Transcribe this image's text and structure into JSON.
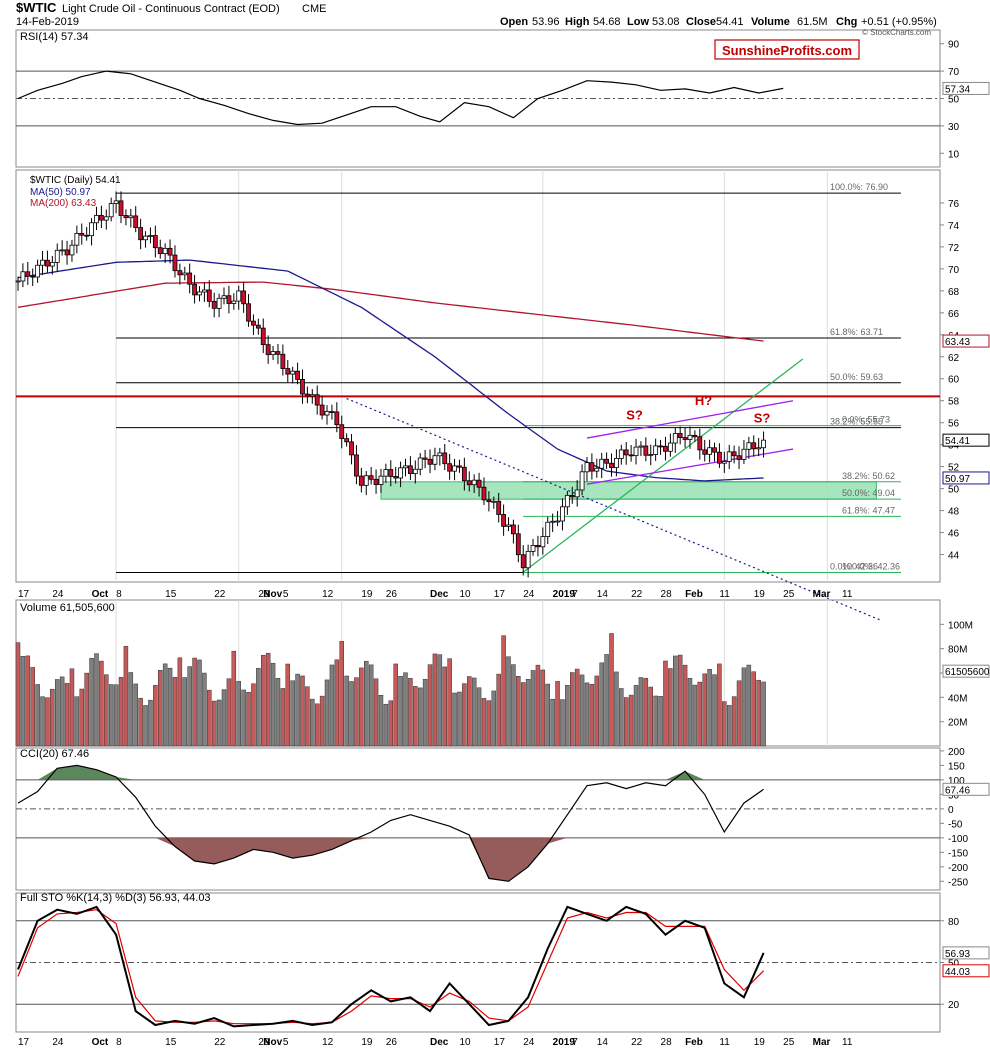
{
  "header": {
    "symbol": "$WTIC",
    "name": "Light Crude Oil - Continuous Contract (EOD)",
    "exchange": "CME",
    "date": "14-Feb-2019",
    "open_label": "Open",
    "open": "53.96",
    "high_label": "High",
    "high": "54.68",
    "low_label": "Low",
    "low": "53.08",
    "close_label": "Close",
    "close": "54.41",
    "volume_label": "Volume",
    "volume": "61.5M",
    "chg_label": "Chg",
    "chg": "+0.51 (+0.95%)",
    "copyright": "© StockCharts.com",
    "watermark": "SunshineProfits.com"
  },
  "colors": {
    "up": "#ffffff",
    "down": "#c8102e",
    "ma50": "#1a1a8c",
    "ma200": "#b0162e",
    "resistance": "#c00000",
    "channel": "#a020f0",
    "support": "#2ab55a",
    "zone_fill": "#9de3b6",
    "neg_fill": "#8b4a4a",
    "pos_fill": "#4a7a4a",
    "vol_up": "#7f7f7f",
    "vol_down": "#c45a5a",
    "pctd": "#e00000"
  },
  "x_axis": {
    "labels": [
      "17",
      "24",
      "Oct",
      "8",
      "15",
      "22",
      "29",
      "Nov",
      "5",
      "12",
      "19",
      "26",
      "Dec",
      "10",
      "17",
      "24",
      "2019",
      "7",
      "14",
      "22",
      "28",
      "Feb",
      "11",
      "19",
      "25",
      "Mar",
      "11"
    ]
  },
  "chart_data": [
    {
      "type": "line",
      "title": "RSI(14) 57.34",
      "ylim": [
        0,
        100
      ],
      "y_ticks": [
        "90",
        "70",
        "50",
        "30",
        "10"
      ],
      "last_label": "57.34",
      "reference_lines": [
        70,
        50,
        30
      ],
      "x_sessions": [
        0,
        4,
        9,
        13,
        18,
        23,
        28,
        33,
        37,
        42,
        47,
        52,
        57,
        62,
        67,
        72,
        77,
        82,
        86,
        91,
        96,
        101,
        106,
        111,
        116,
        121,
        126,
        131,
        136,
        141,
        146,
        151,
        156
      ],
      "values": [
        50,
        56,
        61,
        66,
        70,
        68,
        62,
        56,
        50,
        45,
        39,
        34,
        31,
        32,
        38,
        44,
        44,
        37,
        33,
        47,
        44,
        36,
        50,
        56,
        63,
        62,
        60,
        56,
        57,
        54,
        58,
        54,
        57.34
      ]
    },
    {
      "type": "candlestick",
      "title": "$WTIC (Daily) 54.41",
      "ylim": [
        41.5,
        79
      ],
      "y_ticks": [
        "76",
        "74",
        "72",
        "70",
        "68",
        "66",
        "64",
        "62",
        "60",
        "58",
        "56",
        "54",
        "52",
        "50",
        "48",
        "46",
        "44"
      ],
      "last_labels": {
        "close": "54.41",
        "ma200": "63.43",
        "ma50": "50.97"
      },
      "legend": [
        "$WTIC (Daily) 54.41",
        "MA(50) 50.97",
        "MA(200) 63.43"
      ],
      "anchors": [
        [
          0,
          68.9
        ],
        [
          10,
          71.8
        ],
        [
          15,
          74.0
        ],
        [
          20,
          75.9
        ],
        [
          25,
          73.2
        ],
        [
          30,
          71.5
        ],
        [
          35,
          68.5
        ],
        [
          40,
          66.9
        ],
        [
          45,
          67.5
        ],
        [
          50,
          63.2
        ],
        [
          55,
          60.8
        ],
        [
          60,
          58.0
        ],
        [
          65,
          56.1
        ],
        [
          70,
          50.5
        ],
        [
          75,
          51.2
        ],
        [
          80,
          51.8
        ],
        [
          85,
          53.0
        ],
        [
          90,
          51.5
        ],
        [
          95,
          49.5
        ],
        [
          100,
          46.5
        ],
        [
          103,
          43.2
        ],
        [
          106,
          45.2
        ],
        [
          110,
          47.6
        ],
        [
          113,
          49.5
        ],
        [
          116,
          52.0
        ],
        [
          120,
          52.2
        ],
        [
          125,
          53.5
        ],
        [
          130,
          53.4
        ],
        [
          133,
          54.2
        ],
        [
          136,
          55.0
        ],
        [
          140,
          53.5
        ],
        [
          144,
          52.6
        ],
        [
          147,
          53.2
        ],
        [
          150,
          53.9
        ],
        [
          152,
          54.41
        ]
      ],
      "ma50": [
        [
          0,
          69.2
        ],
        [
          20,
          70.6
        ],
        [
          35,
          70.8
        ],
        [
          55,
          69.8
        ],
        [
          70,
          66.5
        ],
        [
          85,
          62.0
        ],
        [
          100,
          56.8
        ],
        [
          110,
          53.6
        ],
        [
          120,
          51.6
        ],
        [
          130,
          51.0
        ],
        [
          140,
          50.7
        ],
        [
          152,
          50.97
        ]
      ],
      "ma200": [
        [
          0,
          66.5
        ],
        [
          30,
          68.7
        ],
        [
          50,
          68.8
        ],
        [
          65,
          68.1
        ],
        [
          85,
          66.9
        ],
        [
          105,
          65.9
        ],
        [
          125,
          64.9
        ],
        [
          145,
          63.8
        ],
        [
          152,
          63.43
        ]
      ],
      "horizontal_levels": [
        {
          "label": "100.0%: 76.90",
          "value": 76.9
        },
        {
          "label": "61.8%: 63.71",
          "value": 63.71
        },
        {
          "label": "50.0%: 59.63",
          "value": 59.63
        },
        {
          "label": "38.2%: 55.55",
          "value": 55.55
        },
        {
          "label": "0.0%: 42.36",
          "value": 42.36
        }
      ],
      "resistance_level": 58.4,
      "green_levels": [
        {
          "label": "0.0%: 55.73",
          "value": 55.73
        },
        {
          "label": "38.2%: 50.62",
          "value": 50.62
        },
        {
          "label": "50.0%: 49.04",
          "value": 49.04
        },
        {
          "label": "61.8%: 47.47",
          "value": 47.47
        },
        {
          "label": "100.0%: 42.36",
          "value": 42.36
        }
      ],
      "support_zone": [
        49.04,
        50.62
      ],
      "downtrend_line": [
        [
          67,
          58.2
        ],
        [
          176,
          38.0
        ]
      ],
      "uptrend_line": [
        [
          103,
          42.4
        ],
        [
          160,
          61.8
        ]
      ],
      "channel_upper": [
        [
          116,
          54.6
        ],
        [
          158,
          58.0
        ]
      ],
      "channel_lower": [
        [
          116,
          50.4
        ],
        [
          158,
          53.6
        ]
      ],
      "annotations": [
        {
          "text": "S?",
          "session": 124,
          "value": 56.3
        },
        {
          "text": "H?",
          "session": 138,
          "value": 57.6
        },
        {
          "text": "S?",
          "session": 150,
          "value": 56.0
        }
      ]
    },
    {
      "type": "bar",
      "title": "Volume 61,505,600",
      "ylim": [
        0,
        120
      ],
      "y_ticks": [
        "100M",
        "80M",
        "60M",
        "40M",
        "20M"
      ],
      "last_label": "61505600",
      "values_millions_avg": 65
    },
    {
      "type": "line",
      "title": "CCI(20) 67.46",
      "ylim": [
        -280,
        210
      ],
      "y_ticks": [
        "200",
        "150",
        "100",
        "50",
        "0",
        "-50",
        "-100",
        "-150",
        "-200",
        "-250"
      ],
      "last_label": "67.46",
      "reference_lines": [
        100,
        0,
        -100
      ],
      "x_sessions": [
        0,
        4,
        8,
        12,
        16,
        20,
        24,
        28,
        32,
        36,
        40,
        44,
        48,
        52,
        56,
        60,
        64,
        68,
        72,
        76,
        80,
        84,
        88,
        92,
        96,
        100,
        104,
        108,
        112,
        116,
        120,
        124,
        128,
        132,
        136,
        140,
        144,
        148,
        152
      ],
      "values": [
        20,
        60,
        140,
        150,
        135,
        110,
        40,
        -60,
        -130,
        -180,
        -190,
        -170,
        -140,
        -150,
        -170,
        -160,
        -140,
        -110,
        -80,
        -40,
        -20,
        -40,
        -60,
        -90,
        -240,
        -250,
        -200,
        -120,
        -20,
        80,
        90,
        70,
        90,
        80,
        130,
        50,
        -80,
        20,
        67.46
      ]
    },
    {
      "type": "line",
      "title": "Full STO %K(14,3) %D(3) 56.93, 44.03",
      "ylim": [
        0,
        100
      ],
      "y_ticks": [
        "80",
        "50",
        "20"
      ],
      "last_labels": {
        "k": "56.93",
        "d": "44.03"
      },
      "reference_lines": [
        80,
        50,
        20
      ],
      "series": [
        {
          "name": "%K",
          "x_sessions": [
            0,
            4,
            8,
            12,
            16,
            20,
            24,
            28,
            32,
            36,
            40,
            44,
            48,
            52,
            56,
            60,
            64,
            68,
            72,
            76,
            80,
            84,
            88,
            92,
            96,
            100,
            104,
            108,
            112,
            116,
            120,
            124,
            128,
            132,
            136,
            140,
            144,
            148,
            152
          ],
          "values": [
            45,
            80,
            88,
            85,
            90,
            70,
            15,
            5,
            8,
            6,
            10,
            4,
            5,
            6,
            8,
            5,
            7,
            20,
            30,
            22,
            25,
            15,
            35,
            20,
            5,
            8,
            25,
            60,
            90,
            85,
            80,
            90,
            85,
            70,
            80,
            75,
            35,
            25,
            56.93
          ]
        },
        {
          "name": "%D",
          "x_sessions": [
            0,
            4,
            8,
            12,
            16,
            20,
            24,
            28,
            32,
            36,
            40,
            44,
            48,
            52,
            56,
            60,
            64,
            68,
            72,
            76,
            80,
            84,
            88,
            92,
            96,
            100,
            104,
            108,
            112,
            116,
            120,
            124,
            128,
            132,
            136,
            140,
            144,
            148,
            152
          ],
          "values": [
            40,
            75,
            85,
            86,
            88,
            78,
            25,
            8,
            7,
            7,
            8,
            6,
            6,
            6,
            7,
            6,
            7,
            15,
            26,
            24,
            24,
            18,
            28,
            22,
            10,
            8,
            18,
            50,
            82,
            86,
            82,
            86,
            86,
            76,
            76,
            76,
            45,
            30,
            44.03
          ]
        }
      ]
    }
  ]
}
